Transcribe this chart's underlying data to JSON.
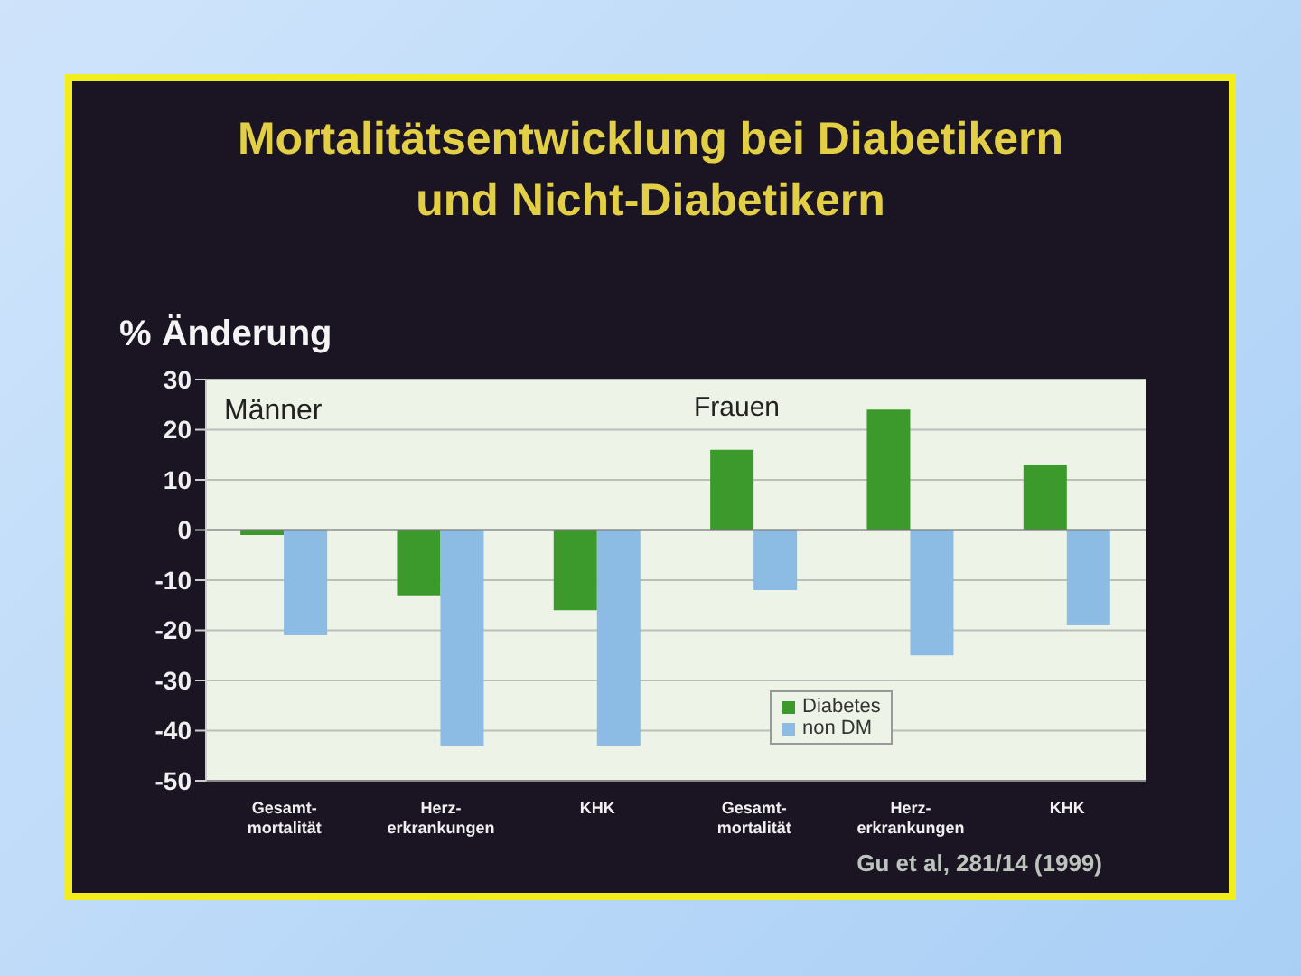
{
  "chart_data": {
    "type": "bar",
    "title": "Mortalitätsentwicklung bei Diabetikern\nund Nicht-Diabetikern",
    "ylabel": "% Änderung",
    "categories": [
      "Gesamt-\nmortalität",
      "Herz-\nerkrankungen",
      "KHK",
      "Gesamt-\nmortalität",
      "Herz-\nerkrankungen",
      "KHK"
    ],
    "series": [
      {
        "name": "Diabetes",
        "color": "#3c9a2c",
        "values": [
          -1,
          -13,
          -16,
          16,
          24,
          13
        ]
      },
      {
        "name": "non DM",
        "color": "#8cbbe3",
        "values": [
          -21,
          -43,
          -43,
          -12,
          -25,
          -19
        ]
      }
    ],
    "ylim": [
      -50,
      30
    ],
    "yticks": [
      -50,
      -40,
      -30,
      -20,
      -10,
      0,
      10,
      20,
      30
    ],
    "grid": "y",
    "legend": "bottom right",
    "annotations": [
      "Männer",
      "Frauen",
      "Gu et al, 281/14 (1999)"
    ]
  }
}
